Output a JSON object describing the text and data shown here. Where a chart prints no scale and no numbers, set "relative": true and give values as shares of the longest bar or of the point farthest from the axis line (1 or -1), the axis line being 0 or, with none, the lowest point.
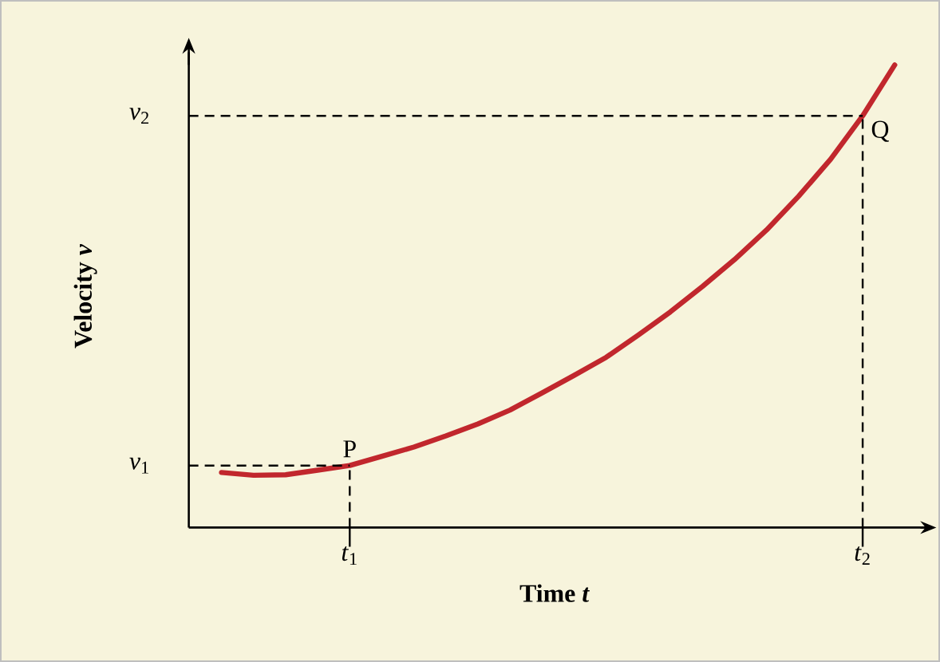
{
  "chart_data": {
    "type": "line",
    "xlabel": "Time *t*",
    "ylabel": "Velocity *v*",
    "relative": true,
    "categories": [
      null,
      null,
      null,
      null,
      "*t*$_{1}$",
      null,
      null,
      null,
      null,
      null,
      null,
      null,
      null,
      null,
      null,
      null,
      null,
      null,
      null,
      null,
      "*t*$_{2}$",
      null
    ],
    "values": [
      0.119,
      0.113,
      0.114,
      0.124,
      0.134,
      0.154,
      0.174,
      0.198,
      0.224,
      0.254,
      0.291,
      0.329,
      0.368,
      0.416,
      0.466,
      0.521,
      0.579,
      0.643,
      0.716,
      0.796,
      0.89,
      1
    ],
    "color": "#c1272d",
    "ref_lines": [
      {
        "axis": "x",
        "value": "*t*$_{1}$",
        "line_style": "dashed"
      },
      {
        "axis": "x",
        "value": "*t*$_{2}$",
        "line_style": "dashed"
      },
      {
        "axis": "y",
        "value": 0.134,
        "label": "*v*$_{1}$",
        "line_style": "dashed"
      },
      {
        "axis": "y",
        "value": 0.89,
        "label": "*v*$_{2}$",
        "line_style": "dashed"
      }
    ],
    "annotations": [
      {
        "text": "P",
        "x": "*t*$_{1}$",
        "y": 0.134
      },
      {
        "text": "Q",
        "x": "*t*$_{2}$",
        "y": 0.89
      }
    ]
  }
}
